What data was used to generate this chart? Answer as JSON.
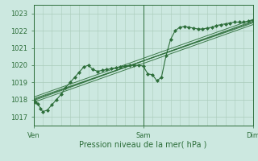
{
  "background_color": "#cce8e0",
  "grid_color": "#aaccbb",
  "line_color": "#2d6e3a",
  "xlabel": "Pression niveau de la mer( hPa )",
  "ylim": [
    1016.5,
    1023.5
  ],
  "yticks": [
    1017,
    1018,
    1019,
    1020,
    1021,
    1022,
    1023
  ],
  "xtick_labels": [
    "Ven",
    "Sam",
    "Dim"
  ],
  "xtick_positions": [
    0,
    24,
    48
  ],
  "total_hours": 48,
  "observed": [
    [
      0,
      1018.0
    ],
    [
      0.5,
      1017.85
    ],
    [
      1,
      1017.75
    ],
    [
      1.5,
      1017.5
    ],
    [
      2,
      1017.3
    ],
    [
      3,
      1017.4
    ],
    [
      4,
      1017.7
    ],
    [
      5,
      1018.0
    ],
    [
      6,
      1018.3
    ],
    [
      7,
      1018.7
    ],
    [
      8,
      1019.0
    ],
    [
      9,
      1019.3
    ],
    [
      10,
      1019.6
    ],
    [
      11,
      1019.9
    ],
    [
      12,
      1020.0
    ],
    [
      13,
      1019.75
    ],
    [
      14,
      1019.65
    ],
    [
      15,
      1019.7
    ],
    [
      16,
      1019.75
    ],
    [
      17,
      1019.8
    ],
    [
      18,
      1019.85
    ],
    [
      19,
      1019.9
    ],
    [
      20,
      1019.95
    ],
    [
      21,
      1020.0
    ],
    [
      22,
      1020.0
    ],
    [
      23,
      1020.0
    ],
    [
      24,
      1019.95
    ],
    [
      25,
      1019.5
    ],
    [
      26,
      1019.45
    ],
    [
      27,
      1019.1
    ],
    [
      28,
      1019.3
    ],
    [
      29,
      1020.55
    ],
    [
      30,
      1021.5
    ],
    [
      31,
      1022.0
    ],
    [
      32,
      1022.2
    ],
    [
      33,
      1022.25
    ],
    [
      34,
      1022.2
    ],
    [
      35,
      1022.15
    ],
    [
      36,
      1022.1
    ],
    [
      37,
      1022.1
    ],
    [
      38,
      1022.15
    ],
    [
      39,
      1022.2
    ],
    [
      40,
      1022.3
    ],
    [
      41,
      1022.35
    ],
    [
      42,
      1022.4
    ],
    [
      43,
      1022.45
    ],
    [
      44,
      1022.5
    ],
    [
      45,
      1022.5
    ],
    [
      46,
      1022.5
    ],
    [
      47,
      1022.55
    ],
    [
      48,
      1022.6
    ]
  ],
  "forecast_lines": [
    [
      [
        0,
        1018.05
      ],
      [
        48,
        1022.45
      ]
    ],
    [
      [
        0,
        1017.95
      ],
      [
        48,
        1022.55
      ]
    ],
    [
      [
        0,
        1018.0
      ],
      [
        48,
        1022.5
      ]
    ],
    [
      [
        0,
        1017.85
      ],
      [
        48,
        1022.35
      ]
    ],
    [
      [
        0,
        1018.15
      ],
      [
        48,
        1022.65
      ]
    ]
  ]
}
